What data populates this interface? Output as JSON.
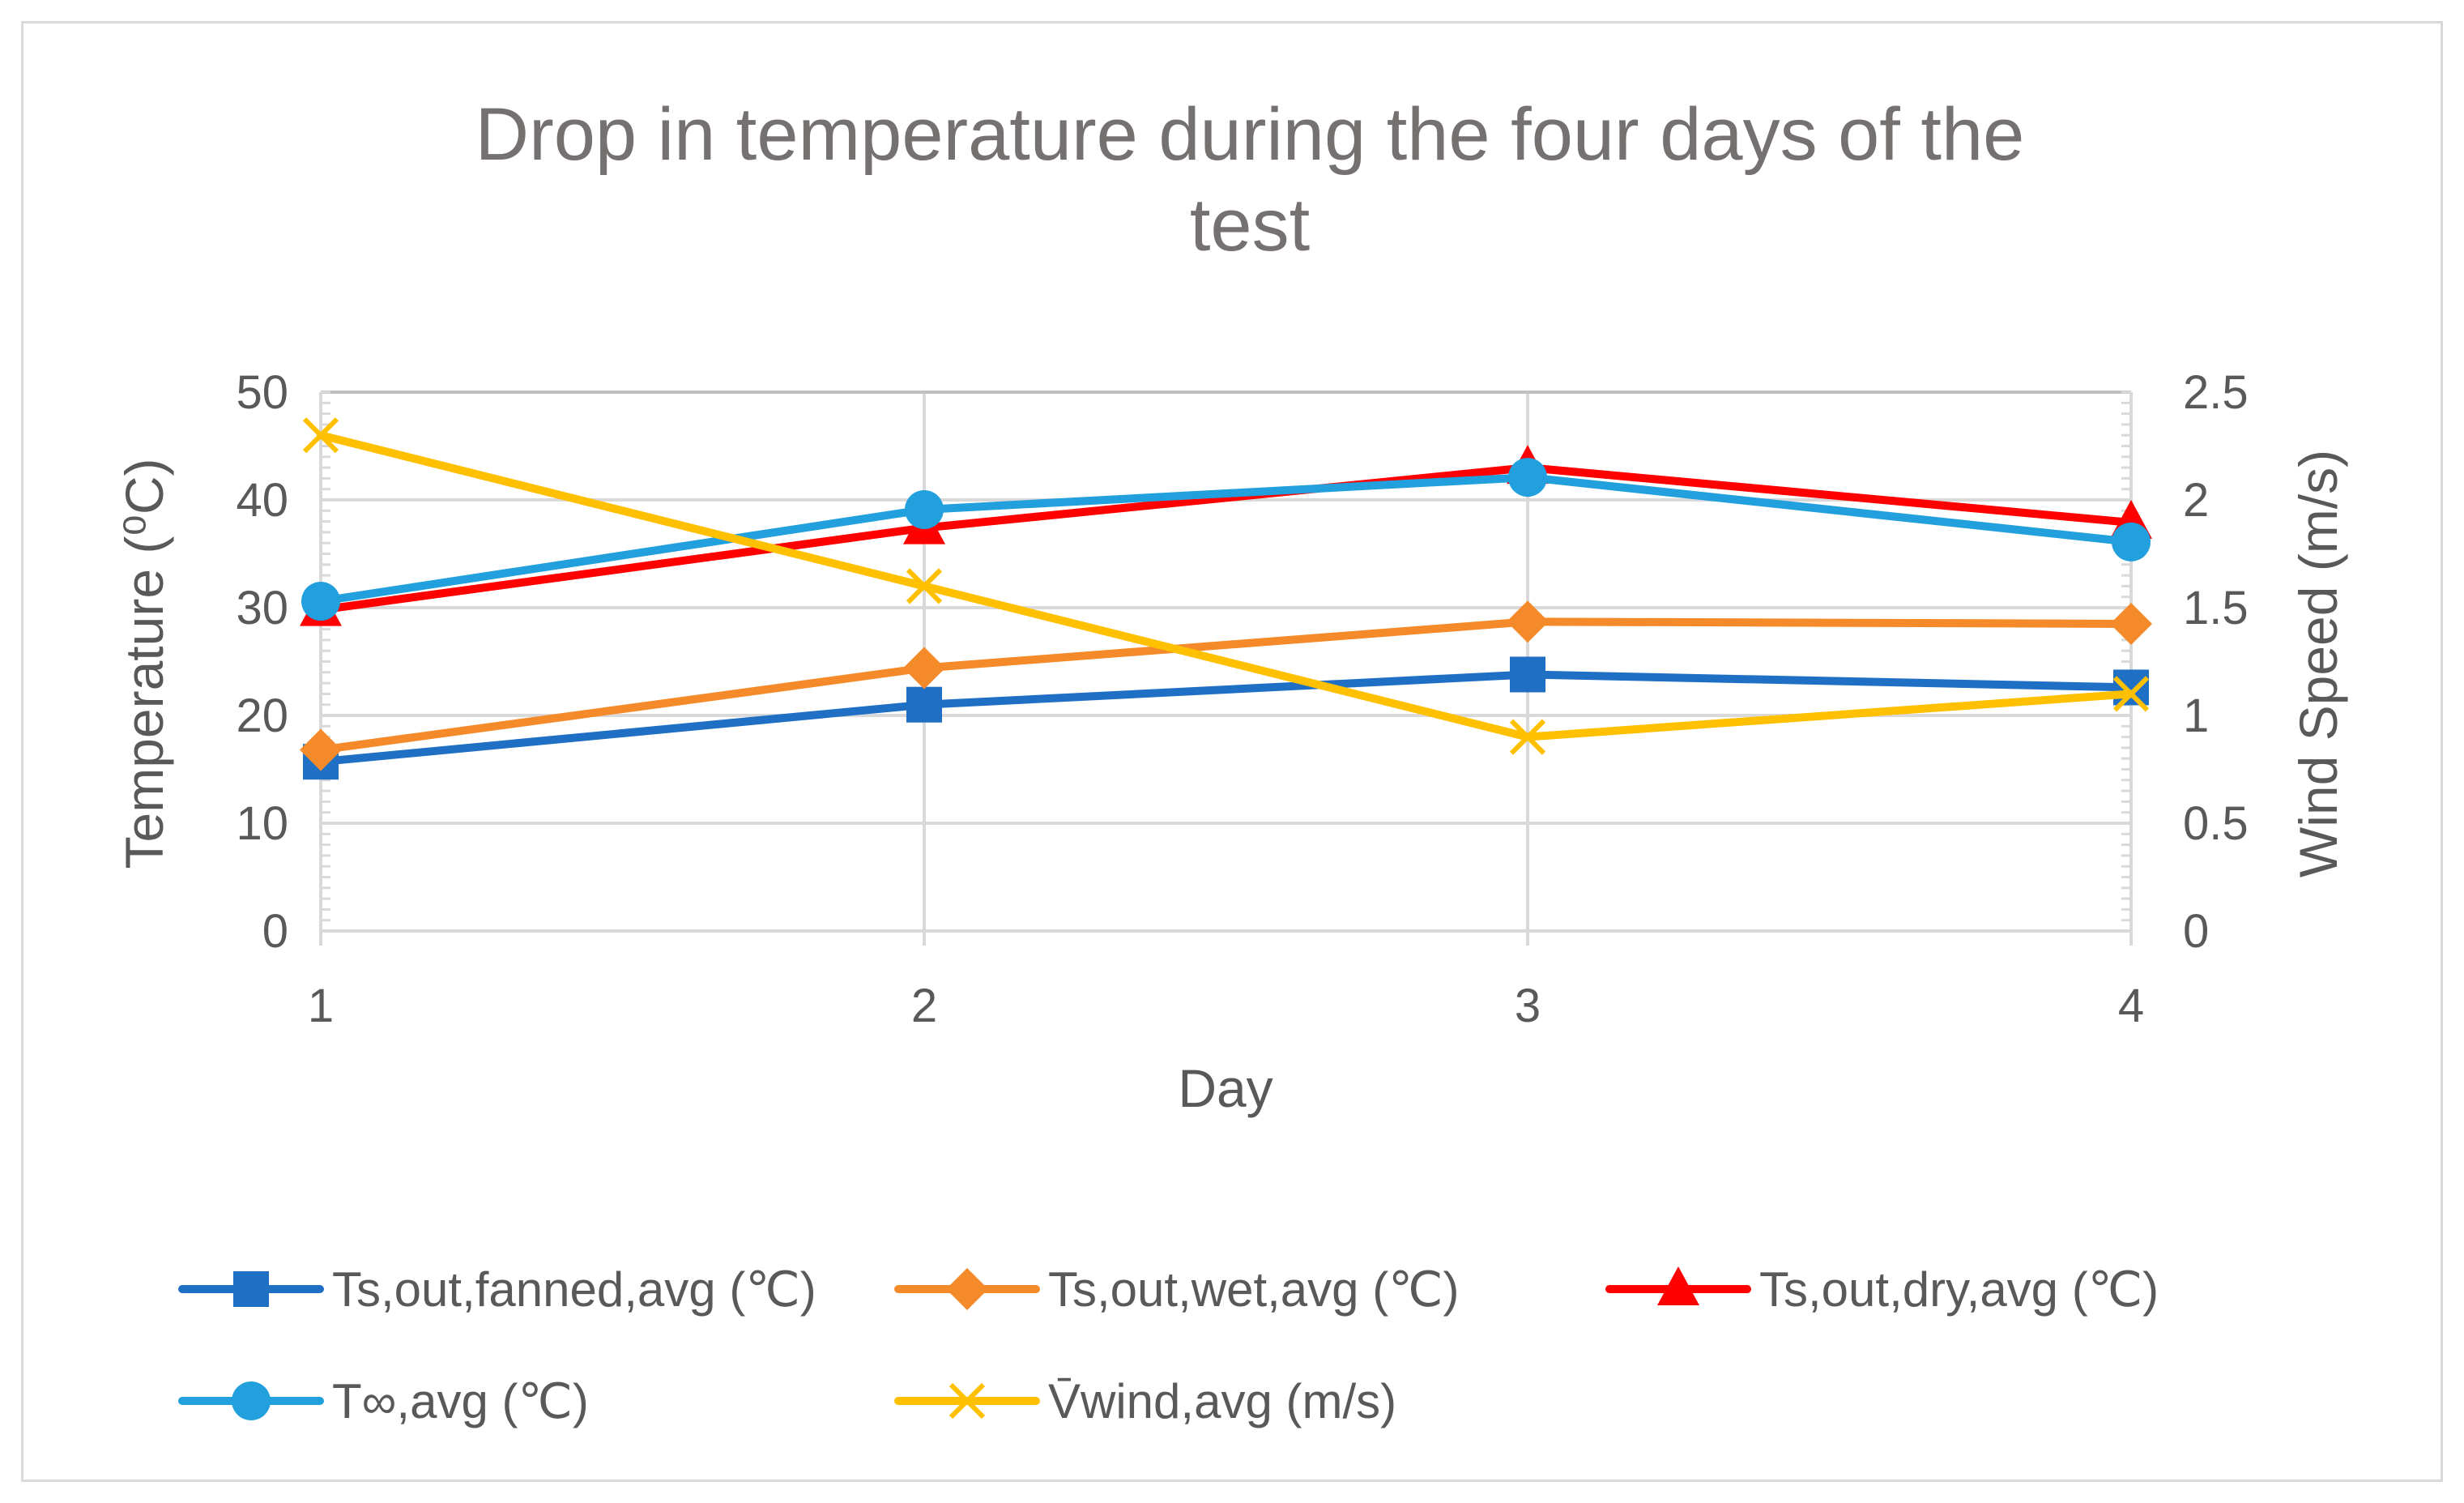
{
  "chart_data": {
    "type": "line",
    "title": "Drop in temperature during the four days of the test",
    "title_lines": [
      "Drop in temperature during the four days of the",
      "test"
    ],
    "xlabel": "Day",
    "ylabel": "Temperature (⁰C)",
    "y2label": "Wind Speed (m/s)",
    "x": [
      1,
      2,
      3,
      4
    ],
    "x_tick_labels": [
      "1",
      "2",
      "3",
      "4"
    ],
    "ylim": [
      0,
      50
    ],
    "y_ticks": [
      0,
      10,
      20,
      30,
      40,
      50
    ],
    "y_tick_labels": [
      "0",
      "10",
      "20",
      "30",
      "40",
      "50"
    ],
    "y2lim": [
      0,
      2.5
    ],
    "y2_ticks": [
      0,
      0.5,
      1,
      1.5,
      2,
      2.5
    ],
    "y2_tick_labels": [
      "0",
      "0.5",
      "1",
      "1.5",
      "2",
      "2.5"
    ],
    "grid": true,
    "legend_position": "bottom",
    "series": [
      {
        "name": "Ts,out,fanned,avg (℃)",
        "axis": "left",
        "color": "#1f6fc5",
        "marker": "square",
        "values": [
          15.7,
          21.0,
          23.8,
          22.6
        ]
      },
      {
        "name": "Ts,out,wet,avg (℃)",
        "axis": "left",
        "color": "#f58a2b",
        "marker": "diamond",
        "values": [
          16.8,
          24.4,
          28.7,
          28.5
        ]
      },
      {
        "name": "Ts,out,dry,avg (℃)",
        "axis": "left",
        "color": "#ff0000",
        "marker": "triangle",
        "values": [
          29.8,
          37.4,
          43.0,
          37.9
        ]
      },
      {
        "name": "T∞,avg (℃)",
        "axis": "left",
        "color": "#22a0dd",
        "marker": "circle",
        "values": [
          30.6,
          39.1,
          42.1,
          36.1
        ]
      },
      {
        "name": "V̄wind,avg (m/s)",
        "axis": "right",
        "color": "#ffc000",
        "marker": "x",
        "values": [
          2.3,
          1.6,
          0.9,
          1.1
        ]
      }
    ]
  }
}
